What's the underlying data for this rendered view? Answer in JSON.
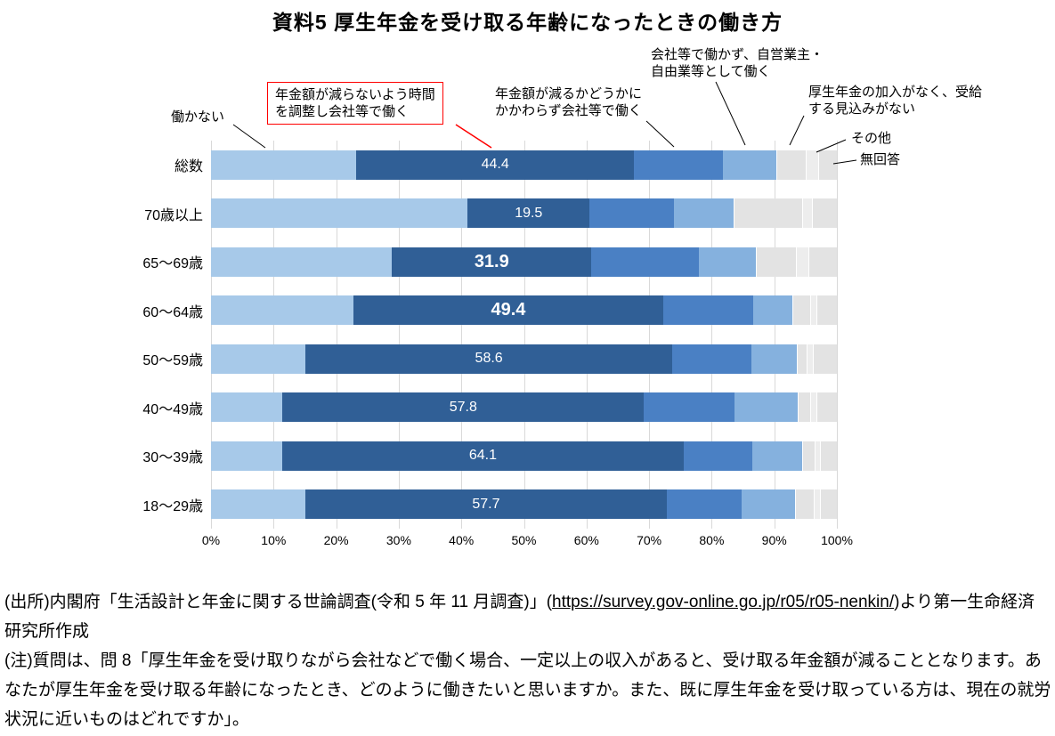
{
  "title": "資料5 厚生年金を受け取る年齢になったときの働き方",
  "chart_data": {
    "type": "bar",
    "variant": "horizontal-stacked-100percent",
    "title": "資料5 厚生年金を受け取る年齢になったときの働き方",
    "categories": [
      "総数",
      "70歳以上",
      "65〜69歳",
      "60〜64歳",
      "50〜59歳",
      "40〜49歳",
      "30〜39歳",
      "18〜29歳"
    ],
    "unit": "%",
    "xlim": [
      0,
      100
    ],
    "x_ticks": [
      "0%",
      "10%",
      "20%",
      "30%",
      "40%",
      "50%",
      "60%",
      "70%",
      "80%",
      "90%",
      "100%"
    ],
    "grid": true,
    "legend_position": "callout-labels-above-chart",
    "series": [
      {
        "name": "働かない",
        "color": "#a7c9e9",
        "values": [
          23.2,
          41.0,
          28.9,
          22.8,
          15.1,
          11.4,
          11.4,
          15.1
        ]
      },
      {
        "name": "年金額が減らないよう時間を調整し会社等で働く",
        "color": "#305f96",
        "values": [
          44.4,
          19.5,
          31.9,
          49.4,
          58.6,
          57.8,
          64.1,
          57.7
        ]
      },
      {
        "name": "年金額が減るかどうかにかかわらず会社等で働く",
        "color": "#4a80c4",
        "values": [
          14.2,
          13.5,
          17.2,
          14.5,
          12.6,
          14.5,
          11.0,
          12.0
        ]
      },
      {
        "name": "会社等で働かず、自営業主・自由業等として働く",
        "color": "#85b1de",
        "values": [
          8.5,
          9.5,
          9.0,
          6.2,
          7.3,
          10.0,
          8.0,
          8.5
        ]
      },
      {
        "name": "厚生年金の加入がなく、受給する見込みがない",
        "color": "#e3e3e3",
        "values": [
          4.7,
          11.0,
          6.4,
          2.8,
          1.5,
          2.0,
          2.0,
          3.0
        ]
      },
      {
        "name": "その他",
        "color": "#ededed",
        "values": [
          2.0,
          1.5,
          2.0,
          1.0,
          1.0,
          1.0,
          0.8,
          1.0
        ]
      },
      {
        "name": "無回答",
        "color": "#e3e3e3",
        "values": [
          3.0,
          4.0,
          4.6,
          3.3,
          3.9,
          3.3,
          2.7,
          2.7
        ]
      }
    ],
    "labeled_series_index": 1,
    "bar_labels": [
      "44.4",
      "19.5",
      "31.9",
      "49.4",
      "58.6",
      "57.8",
      "64.1",
      "57.7"
    ],
    "emphasized_label_rows": [
      2,
      3
    ],
    "label_color": "#ffffff"
  },
  "annotations": {
    "not_working": {
      "line1": "働かない"
    },
    "adjust_hours": {
      "line1": "年金額が減らないよう時間",
      "line2": "を調整し会社等で働く",
      "box_color": "#ff0000"
    },
    "regardless": {
      "line1": "年金額が減るかどうかに",
      "line2": "かかわらず会社等で働く"
    },
    "self_employed": {
      "line1": "会社等で働かず、自営業主・",
      "line2": "自由業等として働く"
    },
    "no_coverage": {
      "line1": "厚生年金の加入がなく、受給",
      "line2": "する見込みがない"
    },
    "other": {
      "line1": "その他"
    },
    "no_answer": {
      "line1": "無回答"
    }
  },
  "source_line": {
    "prefix": "(出所)内閣府「生活設計と年金に関する世論調査(令和 5 年 11 月調査)」(",
    "url": "https://survey.gov-online.go.jp/r05/r05-nenkin/",
    "suffix": ")より第一生命経済研究所作成"
  },
  "note_line": "(注)質問は、問 8「厚生年金を受け取りながら会社などで働く場合、一定以上の収入があると、受け取る年金額が減ることとなります。あなたが厚生年金を受け取る年齢になったとき、どのように働きたいと思いますか。また、既に厚生年金を受け取っている方は、現在の就労状況に近いものはどれですか」。"
}
